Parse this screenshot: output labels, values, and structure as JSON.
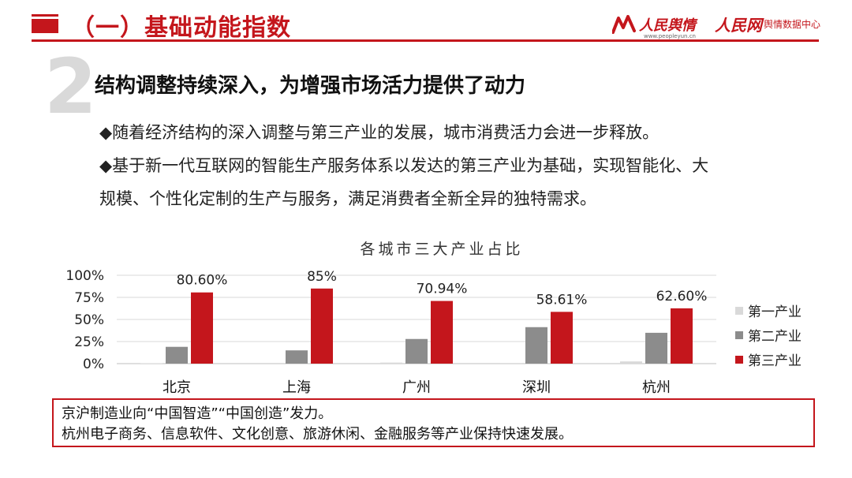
{
  "header": {
    "title": "（一）基础动能指数",
    "logo1": "人民舆情",
    "logo1_sub": "www.peopleyun.cn",
    "logo2": "人民网",
    "logo2_suffix": "舆情数据中心"
  },
  "section": {
    "number": "2",
    "heading": "结构调整持续深入，为增强市场活力提供了动力"
  },
  "bullets": [
    "◆随着经济结构的深入调整与第三产业的发展，城市消费活力会进一步释放。",
    "◆基于新一代互联网的智能生产服务体系以发达的第三产业为基础，实现智能化、大",
    "规模、个性化定制的生产与服务，满足消费者全新全异的独特需求。"
  ],
  "chart_data": {
    "type": "bar",
    "title": "各城市三大产业占比",
    "categories": [
      "北京",
      "上海",
      "广州",
      "深圳",
      "杭州"
    ],
    "series": [
      {
        "name": "第一产业",
        "color": "#d9d9d9",
        "values": [
          0.4,
          0.0,
          1.2,
          0.1,
          2.5
        ]
      },
      {
        "name": "第二产业",
        "color": "#8c8c8c",
        "values": [
          19.0,
          15.0,
          27.9,
          41.3,
          34.9
        ]
      },
      {
        "name": "第三产业",
        "color": "#c4161c",
        "values": [
          80.6,
          85.0,
          70.94,
          58.61,
          62.6
        ]
      }
    ],
    "data_labels": [
      "80.60%",
      "85%",
      "70.94%",
      "58.61%",
      "62.60%"
    ],
    "y_ticks": [
      "0%",
      "25%",
      "50%",
      "75%",
      "100%"
    ],
    "ylim": [
      0,
      100
    ],
    "grid": true,
    "legend_position": "right"
  },
  "note": {
    "line1": "京沪制造业向“中国智造”“中国创造”发力。",
    "line2": "杭州电子商务、信息软件、文化创意、旅游休闲、金融服务等产业保持快速发展。"
  }
}
